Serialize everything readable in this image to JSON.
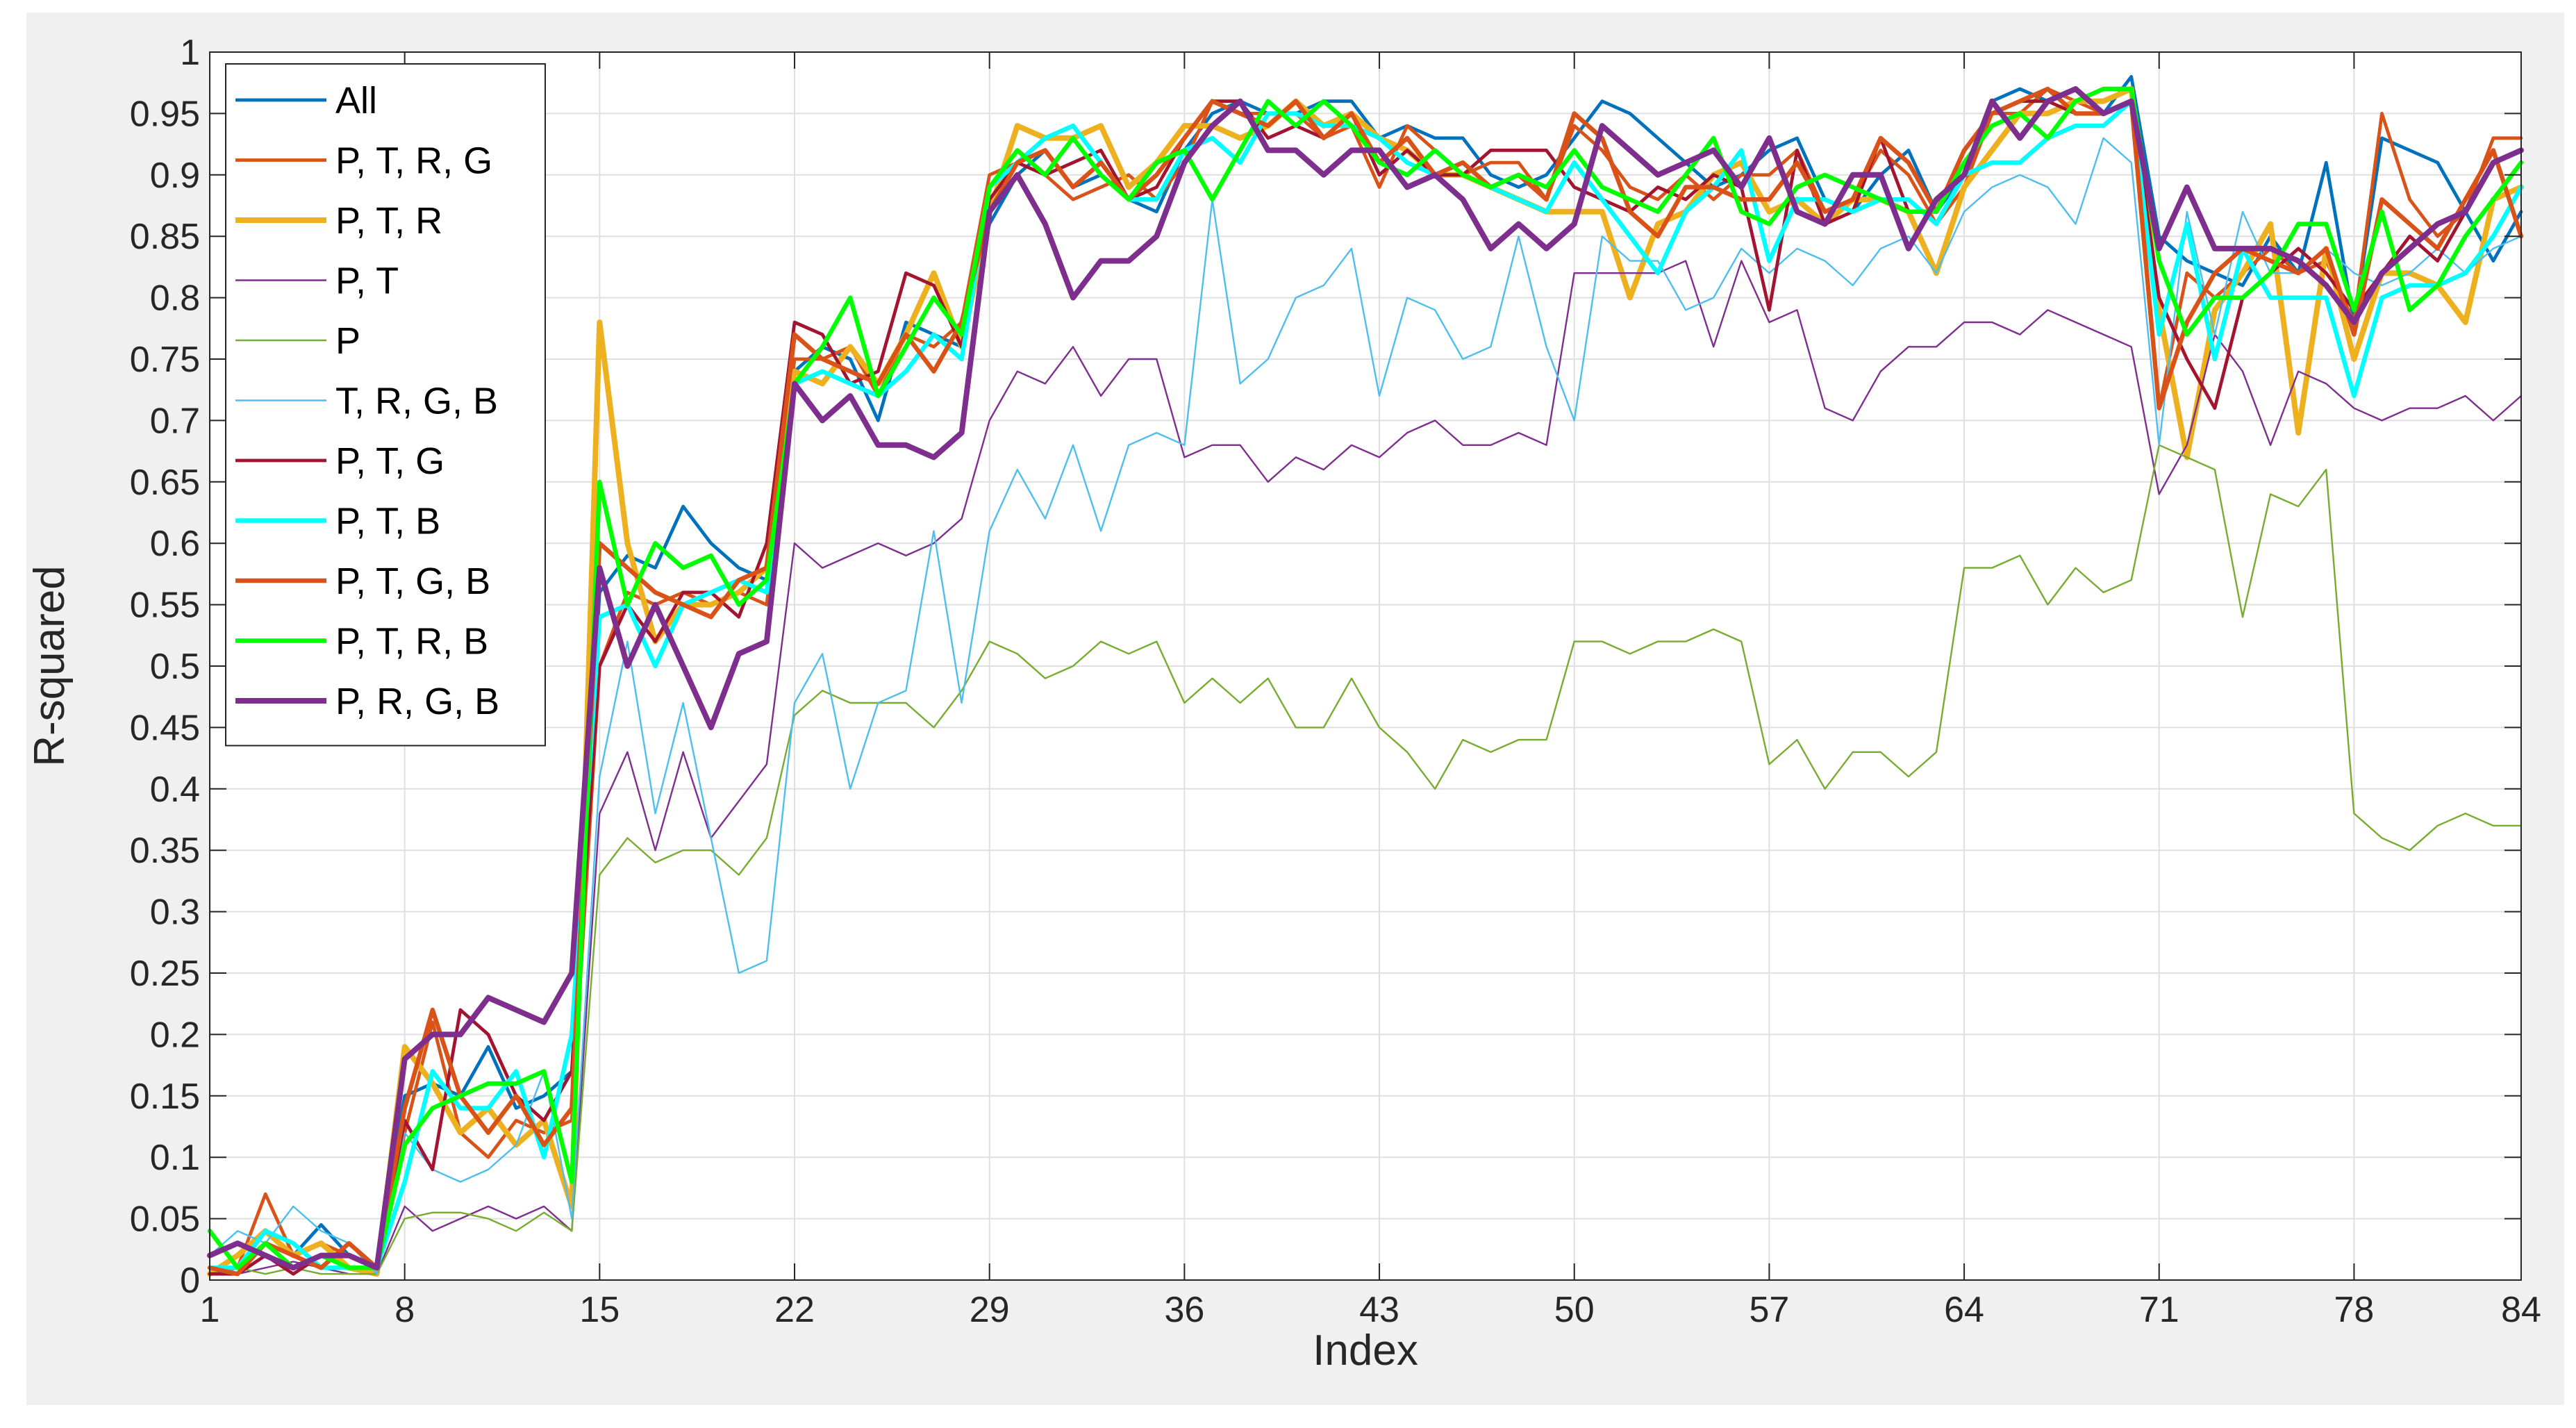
{
  "chart_data": {
    "type": "line",
    "xlabel": "Index",
    "ylabel": "R-squared",
    "xlim": [
      1,
      84
    ],
    "ylim": [
      0,
      1
    ],
    "xticks": [
      1,
      8,
      15,
      22,
      29,
      36,
      43,
      50,
      57,
      64,
      71,
      78,
      84
    ],
    "yticks": [
      0,
      0.05,
      0.1,
      0.15,
      0.2,
      0.25,
      0.3,
      0.35,
      0.4,
      0.45,
      0.5,
      0.55,
      0.6,
      0.65,
      0.7,
      0.75,
      0.8,
      0.85,
      0.9,
      0.95,
      1
    ],
    "ytick_labels": [
      "0",
      "0.05",
      "0.1",
      "0.15",
      "0.2",
      "0.25",
      "0.3",
      "0.35",
      "0.4",
      "0.45",
      "0.5",
      "0.55",
      "0.6",
      "0.65",
      "0.7",
      "0.75",
      "0.8",
      "0.85",
      "0.9",
      "0.95",
      "1"
    ],
    "grid": true,
    "legend_position": "top-left",
    "x": [
      1,
      2,
      3,
      4,
      5,
      6,
      7,
      8,
      9,
      10,
      11,
      12,
      13,
      14,
      15,
      16,
      17,
      18,
      19,
      20,
      21,
      22,
      23,
      24,
      25,
      26,
      27,
      28,
      29,
      30,
      31,
      32,
      33,
      34,
      35,
      36,
      37,
      38,
      39,
      40,
      41,
      42,
      43,
      44,
      45,
      46,
      47,
      48,
      49,
      50,
      51,
      52,
      53,
      54,
      55,
      56,
      57,
      58,
      59,
      60,
      61,
      62,
      63,
      64,
      65,
      66,
      67,
      68,
      69,
      70,
      71,
      72,
      73,
      74,
      75,
      76,
      77,
      78,
      79,
      80,
      81,
      82,
      83,
      84
    ],
    "series": [
      {
        "name": "All",
        "color": "#0072BD",
        "width": 3,
        "values": [
          0.01,
          0.005,
          0.03,
          0.02,
          0.045,
          0.02,
          0.01,
          0.15,
          0.16,
          0.15,
          0.19,
          0.14,
          0.15,
          0.17,
          0.56,
          0.59,
          0.58,
          0.63,
          0.6,
          0.58,
          0.57,
          0.74,
          0.76,
          0.75,
          0.7,
          0.78,
          0.77,
          0.76,
          0.86,
          0.9,
          0.92,
          0.89,
          0.9,
          0.88,
          0.87,
          0.92,
          0.95,
          0.96,
          0.95,
          0.95,
          0.96,
          0.96,
          0.93,
          0.94,
          0.93,
          0.93,
          0.9,
          0.89,
          0.9,
          0.93,
          0.96,
          0.95,
          0.93,
          0.91,
          0.89,
          0.9,
          0.92,
          0.93,
          0.88,
          0.87,
          0.9,
          0.92,
          0.87,
          0.9,
          0.96,
          0.97,
          0.96,
          0.97,
          0.95,
          0.98,
          0.85,
          0.83,
          0.82,
          0.81,
          0.85,
          0.82,
          0.91,
          0.78,
          0.93,
          0.92,
          0.91,
          0.87,
          0.83,
          0.87
        ]
      },
      {
        "name": "P, T, R, G",
        "color": "#D95319",
        "width": 3,
        "values": [
          0.005,
          0.01,
          0.07,
          0.02,
          0.03,
          0.02,
          0.01,
          0.12,
          0.21,
          0.12,
          0.1,
          0.13,
          0.12,
          0.13,
          0.5,
          0.56,
          0.55,
          0.56,
          0.55,
          0.56,
          0.55,
          0.75,
          0.75,
          0.76,
          0.72,
          0.77,
          0.76,
          0.78,
          0.9,
          0.91,
          0.9,
          0.88,
          0.89,
          0.9,
          0.88,
          0.91,
          0.96,
          0.95,
          0.95,
          0.95,
          0.93,
          0.94,
          0.89,
          0.94,
          0.92,
          0.9,
          0.91,
          0.91,
          0.88,
          0.94,
          0.92,
          0.89,
          0.88,
          0.9,
          0.88,
          0.9,
          0.9,
          0.92,
          0.87,
          0.88,
          0.92,
          0.9,
          0.86,
          0.89,
          0.95,
          0.95,
          0.97,
          0.96,
          0.95,
          0.96,
          0.71,
          0.82,
          0.8,
          0.82,
          0.84,
          0.82,
          0.83,
          0.78,
          0.95,
          0.88,
          0.85,
          0.87,
          0.93,
          0.93
        ]
      },
      {
        "name": "P, T, R",
        "color": "#EDB120",
        "width": 5,
        "values": [
          0.005,
          0.02,
          0.04,
          0.02,
          0.03,
          0.01,
          0.005,
          0.19,
          0.16,
          0.12,
          0.14,
          0.11,
          0.13,
          0.06,
          0.78,
          0.6,
          0.52,
          0.55,
          0.55,
          0.56,
          0.58,
          0.74,
          0.73,
          0.76,
          0.73,
          0.77,
          0.82,
          0.76,
          0.87,
          0.94,
          0.93,
          0.93,
          0.94,
          0.89,
          0.91,
          0.94,
          0.94,
          0.93,
          0.94,
          0.96,
          0.94,
          0.95,
          0.93,
          0.92,
          0.9,
          0.9,
          0.89,
          0.88,
          0.87,
          0.87,
          0.87,
          0.8,
          0.86,
          0.87,
          0.9,
          0.91,
          0.87,
          0.88,
          0.86,
          0.88,
          0.88,
          0.87,
          0.82,
          0.89,
          0.92,
          0.95,
          0.95,
          0.96,
          0.96,
          0.97,
          0.79,
          0.67,
          0.79,
          0.82,
          0.86,
          0.69,
          0.84,
          0.75,
          0.82,
          0.82,
          0.81,
          0.78,
          0.88,
          0.89
        ]
      },
      {
        "name": "P, T",
        "color": "#7E2F8E",
        "width": 1.5,
        "values": [
          0.01,
          0.005,
          0.01,
          0.015,
          0.01,
          0.005,
          0.005,
          0.06,
          0.04,
          0.05,
          0.06,
          0.05,
          0.06,
          0.04,
          0.38,
          0.43,
          0.35,
          0.43,
          0.36,
          0.39,
          0.42,
          0.6,
          0.58,
          0.59,
          0.6,
          0.59,
          0.6,
          0.62,
          0.7,
          0.74,
          0.73,
          0.76,
          0.72,
          0.75,
          0.75,
          0.67,
          0.68,
          0.68,
          0.65,
          0.67,
          0.66,
          0.68,
          0.67,
          0.69,
          0.7,
          0.68,
          0.68,
          0.69,
          0.68,
          0.82,
          0.82,
          0.82,
          0.82,
          0.83,
          0.76,
          0.83,
          0.78,
          0.79,
          0.71,
          0.7,
          0.74,
          0.76,
          0.76,
          0.78,
          0.78,
          0.77,
          0.79,
          0.78,
          0.77,
          0.76,
          0.64,
          0.68,
          0.77,
          0.74,
          0.68,
          0.74,
          0.73,
          0.71,
          0.7,
          0.71,
          0.71,
          0.72,
          0.7,
          0.72
        ]
      },
      {
        "name": "P",
        "color": "#77AC30",
        "width": 1.5,
        "values": [
          0.005,
          0.01,
          0.005,
          0.01,
          0.005,
          0.005,
          0.005,
          0.05,
          0.055,
          0.055,
          0.05,
          0.04,
          0.055,
          0.04,
          0.33,
          0.36,
          0.34,
          0.35,
          0.35,
          0.33,
          0.36,
          0.46,
          0.48,
          0.47,
          0.47,
          0.47,
          0.45,
          0.48,
          0.52,
          0.51,
          0.49,
          0.5,
          0.52,
          0.51,
          0.52,
          0.47,
          0.49,
          0.47,
          0.49,
          0.45,
          0.45,
          0.49,
          0.45,
          0.43,
          0.4,
          0.44,
          0.43,
          0.44,
          0.44,
          0.52,
          0.52,
          0.51,
          0.52,
          0.52,
          0.53,
          0.52,
          0.42,
          0.44,
          0.4,
          0.43,
          0.43,
          0.41,
          0.43,
          0.58,
          0.58,
          0.59,
          0.55,
          0.58,
          0.56,
          0.57,
          0.68,
          0.67,
          0.66,
          0.54,
          0.64,
          0.63,
          0.66,
          0.38,
          0.36,
          0.35,
          0.37,
          0.38,
          0.37,
          0.37
        ]
      },
      {
        "name": "T, R, G, B",
        "color": "#4DBEEE",
        "width": 1.5,
        "values": [
          0.02,
          0.04,
          0.03,
          0.06,
          0.04,
          0.03,
          0.005,
          0.12,
          0.09,
          0.08,
          0.09,
          0.11,
          0.17,
          0.05,
          0.41,
          0.52,
          0.38,
          0.47,
          0.36,
          0.25,
          0.26,
          0.47,
          0.51,
          0.4,
          0.47,
          0.48,
          0.61,
          0.47,
          0.61,
          0.66,
          0.62,
          0.68,
          0.61,
          0.68,
          0.69,
          0.68,
          0.88,
          0.73,
          0.75,
          0.8,
          0.81,
          0.84,
          0.72,
          0.8,
          0.79,
          0.75,
          0.76,
          0.85,
          0.76,
          0.7,
          0.85,
          0.83,
          0.83,
          0.79,
          0.8,
          0.84,
          0.82,
          0.84,
          0.83,
          0.81,
          0.84,
          0.85,
          0.82,
          0.87,
          0.89,
          0.9,
          0.89,
          0.86,
          0.93,
          0.91,
          0.68,
          0.87,
          0.77,
          0.87,
          0.82,
          0.82,
          0.84,
          0.82,
          0.81,
          0.82,
          0.84,
          0.82,
          0.84,
          0.85
        ]
      },
      {
        "name": "P, T, G",
        "color": "#A2142F",
        "width": 3,
        "values": [
          0.005,
          0.005,
          0.02,
          0.005,
          0.02,
          0.02,
          0.01,
          0.13,
          0.09,
          0.22,
          0.2,
          0.15,
          0.13,
          0.17,
          0.5,
          0.55,
          0.52,
          0.56,
          0.56,
          0.54,
          0.6,
          0.78,
          0.77,
          0.73,
          0.74,
          0.82,
          0.81,
          0.76,
          0.88,
          0.91,
          0.9,
          0.91,
          0.92,
          0.88,
          0.89,
          0.93,
          0.96,
          0.96,
          0.93,
          0.94,
          0.93,
          0.95,
          0.9,
          0.92,
          0.9,
          0.9,
          0.92,
          0.92,
          0.92,
          0.89,
          0.88,
          0.87,
          0.89,
          0.88,
          0.9,
          0.89,
          0.79,
          0.92,
          0.86,
          0.87,
          0.93,
          0.87,
          0.87,
          0.92,
          0.95,
          0.96,
          0.96,
          0.95,
          0.95,
          0.96,
          0.8,
          0.75,
          0.71,
          0.8,
          0.82,
          0.84,
          0.82,
          0.79,
          0.82,
          0.85,
          0.83,
          0.87,
          0.91,
          0.92
        ]
      },
      {
        "name": "P, T, B",
        "color": "#00FFFF",
        "width": 4,
        "values": [
          0.01,
          0.01,
          0.04,
          0.03,
          0.01,
          0.01,
          0.01,
          0.08,
          0.17,
          0.14,
          0.14,
          0.17,
          0.1,
          0.2,
          0.54,
          0.55,
          0.5,
          0.55,
          0.56,
          0.57,
          0.56,
          0.73,
          0.74,
          0.73,
          0.72,
          0.74,
          0.77,
          0.75,
          0.89,
          0.91,
          0.93,
          0.94,
          0.91,
          0.88,
          0.88,
          0.92,
          0.93,
          0.91,
          0.95,
          0.95,
          0.94,
          0.94,
          0.93,
          0.91,
          0.9,
          0.91,
          0.89,
          0.88,
          0.87,
          0.91,
          0.88,
          0.85,
          0.82,
          0.87,
          0.89,
          0.92,
          0.83,
          0.88,
          0.88,
          0.87,
          0.88,
          0.88,
          0.86,
          0.9,
          0.91,
          0.91,
          0.93,
          0.94,
          0.94,
          0.96,
          0.77,
          0.86,
          0.75,
          0.84,
          0.8,
          0.8,
          0.8,
          0.72,
          0.8,
          0.81,
          0.81,
          0.82,
          0.85,
          0.89
        ]
      },
      {
        "name": "P, T, G, B",
        "color": "#D95319",
        "width": 4,
        "values": [
          0.01,
          0.005,
          0.03,
          0.02,
          0.01,
          0.03,
          0.01,
          0.14,
          0.22,
          0.15,
          0.12,
          0.15,
          0.11,
          0.14,
          0.6,
          0.58,
          0.56,
          0.55,
          0.54,
          0.57,
          0.58,
          0.77,
          0.75,
          0.74,
          0.73,
          0.77,
          0.74,
          0.78,
          0.87,
          0.91,
          0.92,
          0.89,
          0.91,
          0.88,
          0.9,
          0.93,
          0.96,
          0.95,
          0.94,
          0.96,
          0.93,
          0.95,
          0.91,
          0.93,
          0.9,
          0.91,
          0.89,
          0.9,
          0.88,
          0.95,
          0.93,
          0.87,
          0.85,
          0.89,
          0.89,
          0.88,
          0.88,
          0.91,
          0.87,
          0.88,
          0.93,
          0.91,
          0.87,
          0.92,
          0.95,
          0.96,
          0.97,
          0.95,
          0.95,
          0.96,
          0.71,
          0.78,
          0.82,
          0.84,
          0.83,
          0.82,
          0.84,
          0.77,
          0.88,
          0.86,
          0.84,
          0.88,
          0.92,
          0.85
        ]
      },
      {
        "name": "P, T, R, B",
        "color": "#00FF00",
        "width": 4,
        "values": [
          0.04,
          0.01,
          0.03,
          0.01,
          0.02,
          0.01,
          0.01,
          0.11,
          0.14,
          0.15,
          0.16,
          0.16,
          0.17,
          0.08,
          0.65,
          0.55,
          0.6,
          0.58,
          0.59,
          0.55,
          0.57,
          0.73,
          0.76,
          0.8,
          0.72,
          0.76,
          0.8,
          0.77,
          0.89,
          0.92,
          0.9,
          0.93,
          0.9,
          0.88,
          0.91,
          0.92,
          0.88,
          0.92,
          0.96,
          0.94,
          0.96,
          0.94,
          0.91,
          0.9,
          0.92,
          0.9,
          0.89,
          0.9,
          0.89,
          0.92,
          0.89,
          0.88,
          0.87,
          0.9,
          0.93,
          0.87,
          0.86,
          0.89,
          0.9,
          0.89,
          0.88,
          0.87,
          0.87,
          0.91,
          0.94,
          0.95,
          0.93,
          0.96,
          0.97,
          0.97,
          0.83,
          0.77,
          0.8,
          0.8,
          0.82,
          0.86,
          0.86,
          0.79,
          0.87,
          0.79,
          0.81,
          0.85,
          0.88,
          0.91
        ]
      },
      {
        "name": "P, R, G, B",
        "color": "#7E2F8E",
        "width": 5,
        "values": [
          0.02,
          0.03,
          0.02,
          0.01,
          0.02,
          0.02,
          0.01,
          0.18,
          0.2,
          0.2,
          0.23,
          0.22,
          0.21,
          0.25,
          0.58,
          0.5,
          0.55,
          0.5,
          0.45,
          0.51,
          0.52,
          0.73,
          0.7,
          0.72,
          0.68,
          0.68,
          0.67,
          0.69,
          0.87,
          0.9,
          0.86,
          0.8,
          0.83,
          0.83,
          0.85,
          0.91,
          0.94,
          0.96,
          0.92,
          0.92,
          0.9,
          0.92,
          0.92,
          0.89,
          0.9,
          0.88,
          0.84,
          0.86,
          0.84,
          0.86,
          0.94,
          0.92,
          0.9,
          0.91,
          0.92,
          0.89,
          0.93,
          0.87,
          0.86,
          0.9,
          0.9,
          0.84,
          0.88,
          0.9,
          0.96,
          0.93,
          0.96,
          0.97,
          0.95,
          0.96,
          0.84,
          0.89,
          0.84,
          0.84,
          0.84,
          0.83,
          0.81,
          0.78,
          0.82,
          0.84,
          0.86,
          0.87,
          0.91,
          0.92
        ]
      }
    ]
  }
}
